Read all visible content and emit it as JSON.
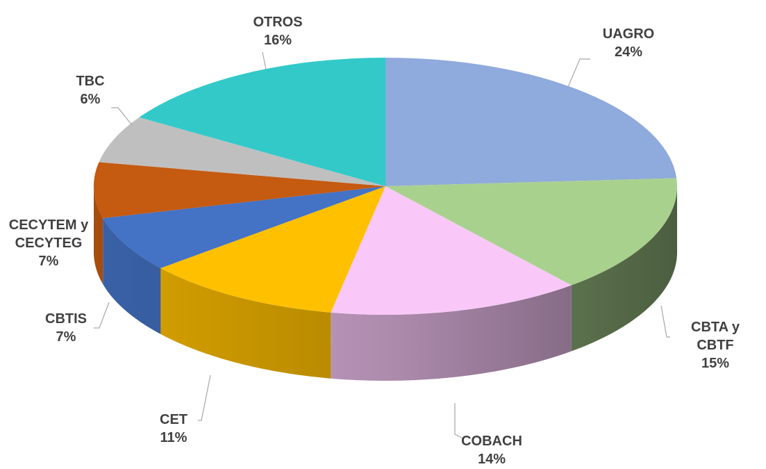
{
  "chart_data": {
    "type": "pie",
    "categories": [
      "UAGRO",
      "CBTA y CBTF",
      "COBACH",
      "CET",
      "CBTIS",
      "CECYTEM y CECYTEG",
      "TBC",
      "OTROS"
    ],
    "values": [
      24,
      15,
      14,
      11,
      7,
      7,
      6,
      16
    ],
    "value_labels": [
      "24%",
      "15%",
      "14%",
      "11%",
      "7%",
      "7%",
      "6%",
      "16%"
    ],
    "colors": [
      "#8faadc",
      "#a9d18e",
      "#f9c8f8",
      "#ffc000",
      "#4472c4",
      "#c55a11",
      "#bfbfbf",
      "#33c9c9"
    ]
  }
}
